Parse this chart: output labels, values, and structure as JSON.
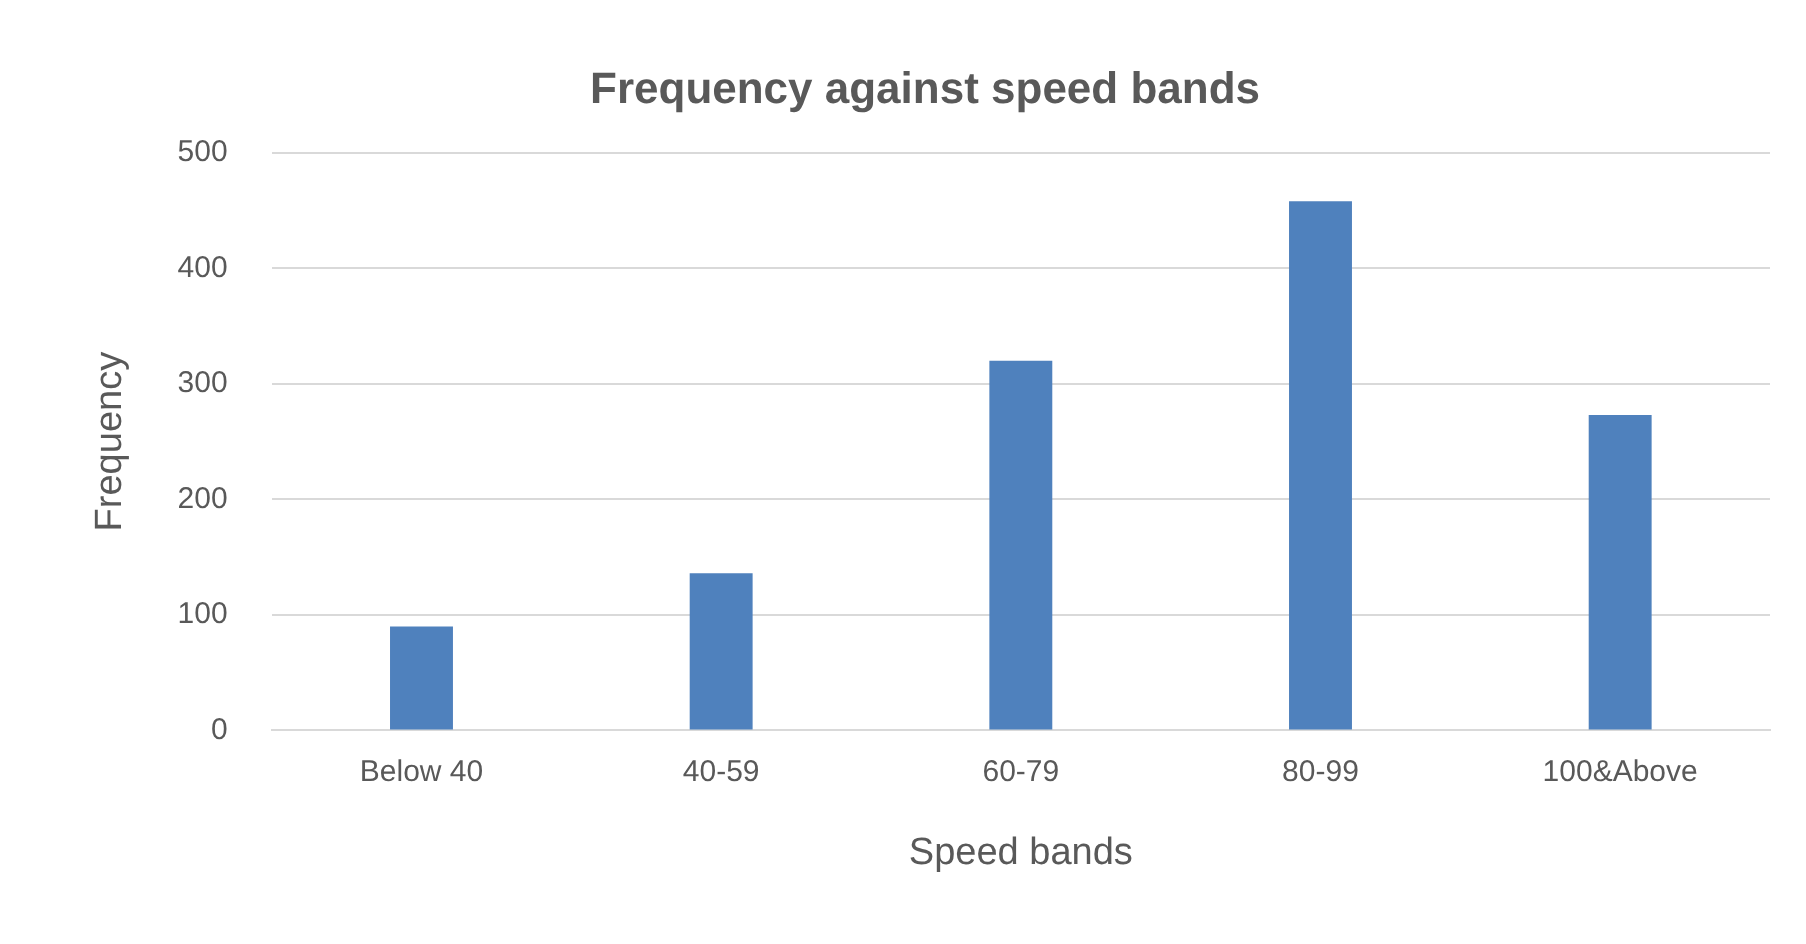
{
  "chart_data": {
    "type": "bar",
    "title": "Frequency against speed bands",
    "xlabel": "Speed bands",
    "ylabel": "Frequency",
    "categories": [
      "Below 40",
      "40-59",
      "60-79",
      "80-99",
      "100&Above"
    ],
    "values": [
      90,
      136,
      320,
      458,
      273
    ],
    "color": "#4f81bd",
    "ylim": [
      0,
      500
    ],
    "yticks": [
      0,
      100,
      200,
      300,
      400,
      500
    ],
    "grid": "y",
    "legend": false
  }
}
